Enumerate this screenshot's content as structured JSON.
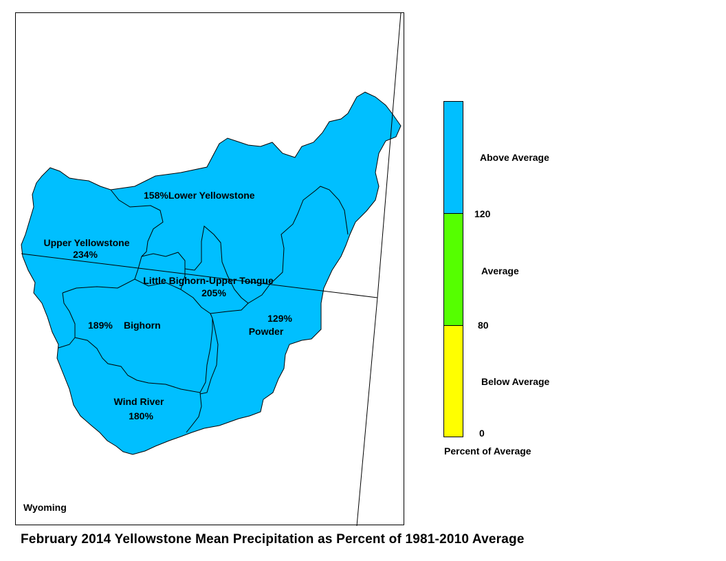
{
  "title": "February 2014 Yellowstone Mean Precipitation as Percent of 1981-2010 Average",
  "state_label": "Wyoming",
  "colors": {
    "above": "#00bfff",
    "average": "#55ff00",
    "below": "#ffff00",
    "border": "#000000"
  },
  "basins": [
    {
      "name": "Lower Yellowstone",
      "percent": "158%",
      "category": "Above Average"
    },
    {
      "name": "Upper Yellowstone",
      "percent": "234%",
      "category": "Above Average"
    },
    {
      "name": "Little Bighorn-Upper Tongue",
      "percent": "205%",
      "category": "Above Average"
    },
    {
      "name": "Bighorn",
      "percent": "189%",
      "category": "Above Average"
    },
    {
      "name": "Powder",
      "percent": "129%",
      "category": "Above Average"
    },
    {
      "name": "Wind River",
      "percent": "180%",
      "category": "Above Average"
    }
  ],
  "legend": {
    "title": "Percent of Average",
    "classes": [
      {
        "label": "Above Average",
        "color": "#00bfff",
        "range": [
          120,
          null
        ]
      },
      {
        "label": "Average",
        "color": "#55ff00",
        "range": [
          80,
          120
        ]
      },
      {
        "label": "Below Average",
        "color": "#ffff00",
        "range": [
          0,
          80
        ]
      }
    ],
    "ticks": [
      "120",
      "80",
      "0"
    ]
  }
}
